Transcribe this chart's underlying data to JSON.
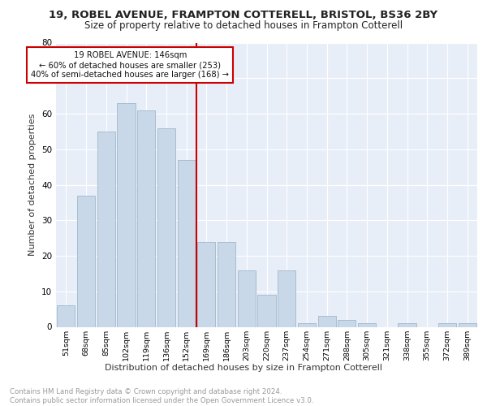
{
  "title1": "19, ROBEL AVENUE, FRAMPTON COTTERELL, BRISTOL, BS36 2BY",
  "title2": "Size of property relative to detached houses in Frampton Cotterell",
  "xlabel": "Distribution of detached houses by size in Frampton Cotterell",
  "ylabel": "Number of detached properties",
  "bar_labels": [
    "51sqm",
    "68sqm",
    "85sqm",
    "102sqm",
    "119sqm",
    "136sqm",
    "152sqm",
    "169sqm",
    "186sqm",
    "203sqm",
    "220sqm",
    "237sqm",
    "254sqm",
    "271sqm",
    "288sqm",
    "305sqm",
    "321sqm",
    "338sqm",
    "355sqm",
    "372sqm",
    "389sqm"
  ],
  "bar_values": [
    6,
    37,
    55,
    63,
    61,
    56,
    47,
    24,
    24,
    16,
    9,
    16,
    1,
    3,
    2,
    1,
    0,
    1,
    0,
    1,
    1
  ],
  "bar_color": "#c8d8e8",
  "bar_edge_color": "#a0b8cc",
  "vline_x": 6.5,
  "vline_color": "#cc0000",
  "annotation_text": "19 ROBEL AVENUE: 146sqm\n← 60% of detached houses are smaller (253)\n40% of semi-detached houses are larger (168) →",
  "annotation_box_color": "#ffffff",
  "annotation_box_edge": "#cc0000",
  "ylim": [
    0,
    80
  ],
  "yticks": [
    0,
    10,
    20,
    30,
    40,
    50,
    60,
    70,
    80
  ],
  "background_color": "#e8eef8",
  "footer_text": "Contains HM Land Registry data © Crown copyright and database right 2024.\nContains public sector information licensed under the Open Government Licence v3.0.",
  "grid_color": "#ffffff",
  "title1_fontsize": 9.5,
  "title2_fontsize": 8.5,
  "xlabel_fontsize": 8,
  "ylabel_fontsize": 8,
  "footer_fontsize": 6.2
}
